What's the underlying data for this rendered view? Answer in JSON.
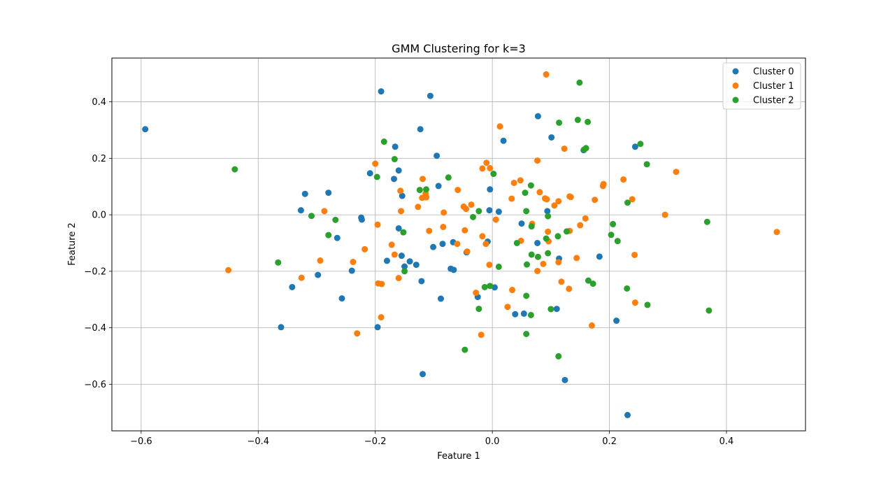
{
  "chart_data": {
    "type": "scatter",
    "title": "GMM Clustering for k=3",
    "xlabel": "Feature 1",
    "ylabel": "Feature 2",
    "xlim": [
      -0.65,
      0.535
    ],
    "ylim": [
      -0.765,
      0.555
    ],
    "xticks": [
      -0.6,
      -0.4,
      -0.2,
      0.0,
      0.2,
      0.4
    ],
    "xtick_labels": [
      "−0.6",
      "−0.4",
      "−0.2",
      "0.0",
      "0.2",
      "0.4"
    ],
    "yticks": [
      -0.6,
      -0.4,
      -0.2,
      0.0,
      0.2,
      0.4
    ],
    "ytick_labels": [
      "−0.6",
      "−0.4",
      "−0.2",
      "0.0",
      "0.2",
      "0.4"
    ],
    "grid": true,
    "legend_position": "top-right",
    "series": [
      {
        "name": "Cluster 0",
        "color": "#1f77b4",
        "points": [
          [
            -0.593,
            0.303
          ],
          [
            -0.19,
            0.437
          ],
          [
            -0.106,
            0.421
          ],
          [
            -0.123,
            0.303
          ],
          [
            0.078,
            0.349
          ],
          [
            0.101,
            0.274
          ],
          [
            0.019,
            0.262
          ],
          [
            -0.166,
            0.241
          ],
          [
            0.156,
            0.229
          ],
          [
            0.244,
            0.241
          ],
          [
            -0.095,
            0.209
          ],
          [
            -0.16,
            0.157
          ],
          [
            -0.209,
            0.147
          ],
          [
            -0.168,
            0.127
          ],
          [
            -0.092,
            0.102
          ],
          [
            -0.004,
            0.09
          ],
          [
            -0.32,
            0.074
          ],
          [
            -0.28,
            0.078
          ],
          [
            -0.154,
            0.067
          ],
          [
            -0.327,
            0.016
          ],
          [
            -0.005,
            0.016
          ],
          [
            0.011,
            0.011
          ],
          [
            0.094,
            0.013
          ],
          [
            -0.224,
            -0.01
          ],
          [
            -0.223,
            -0.017
          ],
          [
            -0.16,
            -0.048
          ],
          [
            -0.265,
            -0.082
          ],
          [
            0.05,
            -0.031
          ],
          [
            -0.067,
            -0.097
          ],
          [
            -0.085,
            -0.103
          ],
          [
            -0.008,
            -0.095
          ],
          [
            0.077,
            -0.1
          ],
          [
            -0.044,
            -0.133
          ],
          [
            -0.101,
            -0.114
          ],
          [
            -0.18,
            -0.163
          ],
          [
            -0.155,
            -0.145
          ],
          [
            -0.141,
            -0.165
          ],
          [
            -0.13,
            -0.177
          ],
          [
            -0.15,
            -0.183
          ],
          [
            0.114,
            -0.155
          ],
          [
            0.183,
            -0.148
          ],
          [
            -0.24,
            -0.198
          ],
          [
            -0.298,
            -0.213
          ],
          [
            -0.342,
            -0.256
          ],
          [
            -0.071,
            -0.191
          ],
          [
            -0.066,
            -0.195
          ],
          [
            -0.121,
            -0.235
          ],
          [
            -0.257,
            -0.296
          ],
          [
            -0.088,
            -0.297
          ],
          [
            -0.025,
            -0.291
          ],
          [
            0.004,
            -0.257
          ],
          [
            0.039,
            -0.352
          ],
          [
            0.054,
            -0.35
          ],
          [
            0.11,
            -0.333
          ],
          [
            0.212,
            -0.375
          ],
          [
            -0.361,
            -0.398
          ],
          [
            -0.196,
            -0.398
          ],
          [
            -0.119,
            -0.564
          ],
          [
            0.124,
            -0.585
          ],
          [
            0.231,
            -0.709
          ]
        ]
      },
      {
        "name": "Cluster 1",
        "color": "#ff7f0e",
        "points": [
          [
            0.092,
            0.497
          ],
          [
            0.013,
            0.313
          ],
          [
            0.123,
            0.234
          ],
          [
            0.314,
            0.152
          ],
          [
            0.077,
            0.192
          ],
          [
            -0.2,
            0.181
          ],
          [
            -0.01,
            0.184
          ],
          [
            -0.004,
            0.165
          ],
          [
            -0.017,
            0.164
          ],
          [
            -0.119,
            0.127
          ],
          [
            0.048,
            0.122
          ],
          [
            0.037,
            0.113
          ],
          [
            0.189,
            0.102
          ],
          [
            0.19,
            0.109
          ],
          [
            0.224,
            0.125
          ],
          [
            -0.114,
            0.075
          ],
          [
            -0.113,
            0.062
          ],
          [
            -0.059,
            0.088
          ],
          [
            -0.157,
            0.085
          ],
          [
            0.081,
            0.08
          ],
          [
            0.033,
            0.057
          ],
          [
            0.09,
            0.058
          ],
          [
            0.093,
            0.055
          ],
          [
            0.113,
            0.048
          ],
          [
            0.106,
            0.033
          ],
          [
            0.134,
            0.063
          ],
          [
            0.132,
            0.065
          ],
          [
            0.175,
            0.053
          ],
          [
            0.239,
            0.055
          ],
          [
            -0.12,
            0.06
          ],
          [
            -0.036,
            0.036
          ],
          [
            -0.049,
            0.029
          ],
          [
            -0.045,
            0.021
          ],
          [
            -0.127,
            0.028
          ],
          [
            -0.156,
            0.013
          ],
          [
            -0.287,
            0.013
          ],
          [
            -0.083,
            0.008
          ],
          [
            0.295,
            0.0
          ],
          [
            0.159,
            -0.013
          ],
          [
            0.006,
            -0.017
          ],
          [
            -0.196,
            -0.035
          ],
          [
            -0.108,
            -0.057
          ],
          [
            -0.084,
            -0.043
          ],
          [
            -0.047,
            -0.055
          ],
          [
            0.068,
            -0.032
          ],
          [
            0.095,
            -0.06
          ],
          [
            0.132,
            -0.057
          ],
          [
            0.15,
            -0.037
          ],
          [
            0.486,
            -0.061
          ],
          [
            -0.017,
            -0.076
          ],
          [
            -0.011,
            -0.103
          ],
          [
            -0.06,
            -0.103
          ],
          [
            0.049,
            -0.092
          ],
          [
            0.096,
            -0.094
          ],
          [
            -0.172,
            -0.106
          ],
          [
            -0.218,
            -0.122
          ],
          [
            -0.043,
            -0.13
          ],
          [
            0.243,
            -0.142
          ],
          [
            -0.167,
            -0.141
          ],
          [
            0.144,
            -0.153
          ],
          [
            0.113,
            -0.168
          ],
          [
            0.087,
            -0.174
          ],
          [
            -0.005,
            -0.177
          ],
          [
            -0.451,
            -0.196
          ],
          [
            -0.294,
            -0.162
          ],
          [
            -0.238,
            -0.167
          ],
          [
            0.077,
            -0.199
          ],
          [
            -0.326,
            -0.223
          ],
          [
            -0.16,
            -0.224
          ],
          [
            -0.195,
            -0.243
          ],
          [
            -0.189,
            -0.245
          ],
          [
            0.118,
            -0.237
          ],
          [
            0.034,
            -0.266
          ],
          [
            0.131,
            -0.262
          ],
          [
            -0.028,
            -0.276
          ],
          [
            0.026,
            -0.326
          ],
          [
            0.244,
            -0.311
          ],
          [
            -0.19,
            -0.363
          ],
          [
            0.17,
            -0.392
          ],
          [
            -0.231,
            -0.42
          ],
          [
            -0.019,
            -0.425
          ]
        ]
      },
      {
        "name": "Cluster 2",
        "color": "#2ca02c",
        "points": [
          [
            0.149,
            0.468
          ],
          [
            0.146,
            0.336
          ],
          [
            0.163,
            0.329
          ],
          [
            0.114,
            0.326
          ],
          [
            0.253,
            0.251
          ],
          [
            -0.185,
            0.259
          ],
          [
            0.16,
            0.236
          ],
          [
            0.157,
            0.231
          ],
          [
            -0.44,
            0.161
          ],
          [
            0.264,
            0.179
          ],
          [
            -0.167,
            0.197
          ],
          [
            0.002,
            0.145
          ],
          [
            -0.197,
            0.134
          ],
          [
            -0.075,
            0.132
          ],
          [
            0.066,
            0.104
          ],
          [
            -0.113,
            0.09
          ],
          [
            -0.124,
            0.088
          ],
          [
            0.056,
            0.078
          ],
          [
            0.231,
            0.043
          ],
          [
            -0.033,
            -0.008
          ],
          [
            -0.023,
            0.013
          ],
          [
            0.058,
            0.013
          ],
          [
            0.095,
            -0.005
          ],
          [
            -0.309,
            -0.004
          ],
          [
            -0.268,
            -0.018
          ],
          [
            0.367,
            -0.025
          ],
          [
            0.206,
            -0.033
          ],
          [
            0.067,
            -0.041
          ],
          [
            -0.152,
            -0.062
          ],
          [
            0.127,
            -0.059
          ],
          [
            0.112,
            -0.076
          ],
          [
            0.203,
            -0.071
          ],
          [
            -0.28,
            -0.072
          ],
          [
            0.042,
            -0.1
          ],
          [
            0.092,
            -0.084
          ],
          [
            0.214,
            -0.093
          ],
          [
            0.095,
            -0.136
          ],
          [
            0.078,
            -0.149
          ],
          [
            0.067,
            -0.141
          ],
          [
            -0.366,
            -0.169
          ],
          [
            0.059,
            -0.176
          ],
          [
            0.011,
            -0.184
          ],
          [
            -0.15,
            -0.2
          ],
          [
            0.164,
            -0.233
          ],
          [
            0.172,
            -0.244
          ],
          [
            0.23,
            -0.261
          ],
          [
            -0.013,
            -0.256
          ],
          [
            -0.004,
            -0.252
          ],
          [
            0.058,
            -0.287
          ],
          [
            0.265,
            -0.319
          ],
          [
            -0.023,
            -0.333
          ],
          [
            0.1,
            -0.334
          ],
          [
            0.37,
            -0.339
          ],
          [
            0.066,
            -0.355
          ],
          [
            0.058,
            -0.422
          ],
          [
            -0.047,
            -0.478
          ],
          [
            0.113,
            -0.501
          ]
        ]
      }
    ]
  }
}
